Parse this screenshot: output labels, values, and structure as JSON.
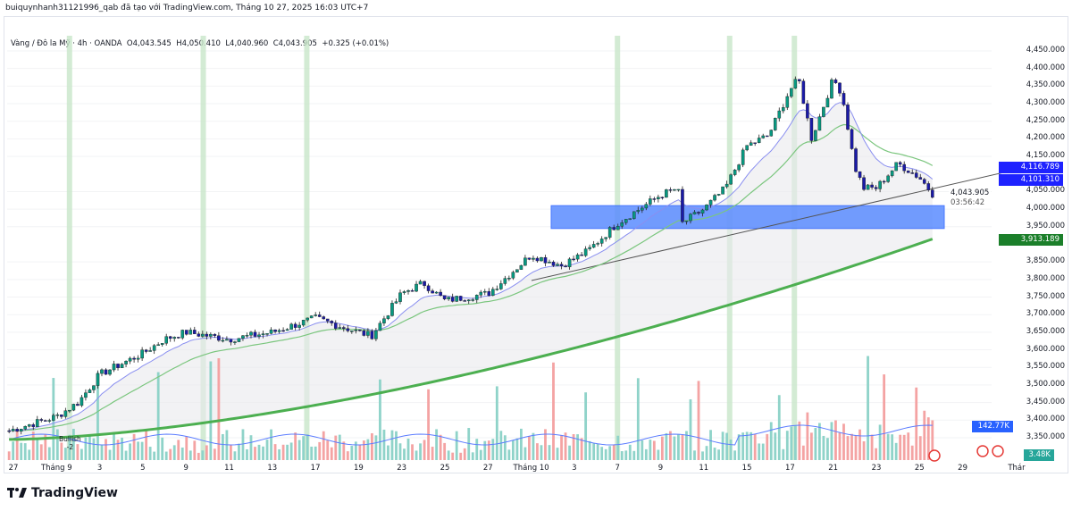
{
  "header": "buiquynhanh31121996_qab đã tạo với TradingView.com, Tháng 10 27, 2025 16:03 UTC+7",
  "legend": {
    "symbol": "Vàng / Đô la Mỹ · 4h · OANDA",
    "open": "O4,043.545",
    "high": "H4,050.410",
    "low": "L4,040.960",
    "close": "C4,043.905",
    "change": "+0.325 (+0.01%)"
  },
  "price_axis": [
    "4,450.000",
    "4,400.000",
    "4,350.000",
    "4,300.000",
    "4,250.000",
    "4,200.000",
    "4,150.000",
    "4,050.000",
    "4,000.000",
    "3,950.000",
    "3,850.000",
    "3,800.000",
    "3,750.000",
    "3,700.000",
    "3,650.000",
    "3,600.000",
    "3,550.000",
    "3,500.000",
    "3,450.000",
    "3,400.000",
    "3,350.000"
  ],
  "price_values": [
    4450,
    4400,
    4350,
    4300,
    4250,
    4200,
    4150,
    4050,
    4000,
    3950,
    3850,
    3800,
    3750,
    3700,
    3650,
    3600,
    3550,
    3500,
    3450,
    3400,
    3350
  ],
  "tags": {
    "ma_fast": "4,116.789",
    "ma_slow": "4,101.310",
    "last_price": "4,043.905",
    "countdown": "03:56:42",
    "ma_long": "3,913.189",
    "volume_ma": "142.77K",
    "volume": "3.48K"
  },
  "x_axis": [
    "27",
    "Tháng 9",
    "3",
    "5",
    "9",
    "11",
    "13",
    "17",
    "19",
    "23",
    "25",
    "27",
    "Tháng 10",
    "3",
    "7",
    "9",
    "11",
    "15",
    "17",
    "21",
    "23",
    "25",
    "29",
    "Thár"
  ],
  "bullish_label": "Bullish",
  "bullish_count": "-2",
  "logo": "TradingView",
  "colors": {
    "up": "#089981",
    "down": "#1a1aa8",
    "ma_long": "#4caf50",
    "box": "#2962ff",
    "band": "#c8e6c9"
  },
  "chart_data": {
    "type": "candlestick",
    "symbol": "XAUUSD 4h",
    "ylim": [
      3320,
      4470
    ],
    "anchors": [
      [
        -0.1,
        3370
      ],
      [
        1,
        3410
      ],
      [
        1.5,
        3450
      ],
      [
        2,
        3530
      ],
      [
        3,
        3590
      ],
      [
        3.5,
        3630
      ],
      [
        4,
        3650
      ],
      [
        5,
        3630
      ],
      [
        6,
        3650
      ],
      [
        7,
        3690
      ],
      [
        8,
        3650
      ],
      [
        8.3,
        3640
      ],
      [
        9,
        3760
      ],
      [
        9.5,
        3790
      ],
      [
        10,
        3740
      ],
      [
        11,
        3760
      ],
      [
        12,
        3870
      ],
      [
        12.7,
        3840
      ],
      [
        13.3,
        3880
      ],
      [
        14,
        3960
      ],
      [
        15,
        4040
      ],
      [
        15.4,
        4060
      ],
      [
        15.5,
        3960
      ],
      [
        16,
        4000
      ],
      [
        16.5,
        4060
      ],
      [
        17,
        4180
      ],
      [
        17.5,
        4210
      ],
      [
        18,
        4340
      ],
      [
        18.2,
        4370
      ],
      [
        18.5,
        4200
      ],
      [
        19,
        4370
      ],
      [
        19.2,
        4330
      ],
      [
        19.5,
        4120
      ],
      [
        19.7,
        4060
      ],
      [
        20,
        4060
      ],
      [
        20.5,
        4130
      ],
      [
        21,
        4090
      ],
      [
        21.3,
        4044
      ]
    ],
    "zone": [
      3945,
      4010
    ],
    "trendline": [
      [
        12,
        3800
      ],
      [
        23,
        4110
      ]
    ],
    "signal_bands": [
      1.3,
      4.4,
      6.8,
      14.0,
      16.6,
      18.1
    ]
  }
}
